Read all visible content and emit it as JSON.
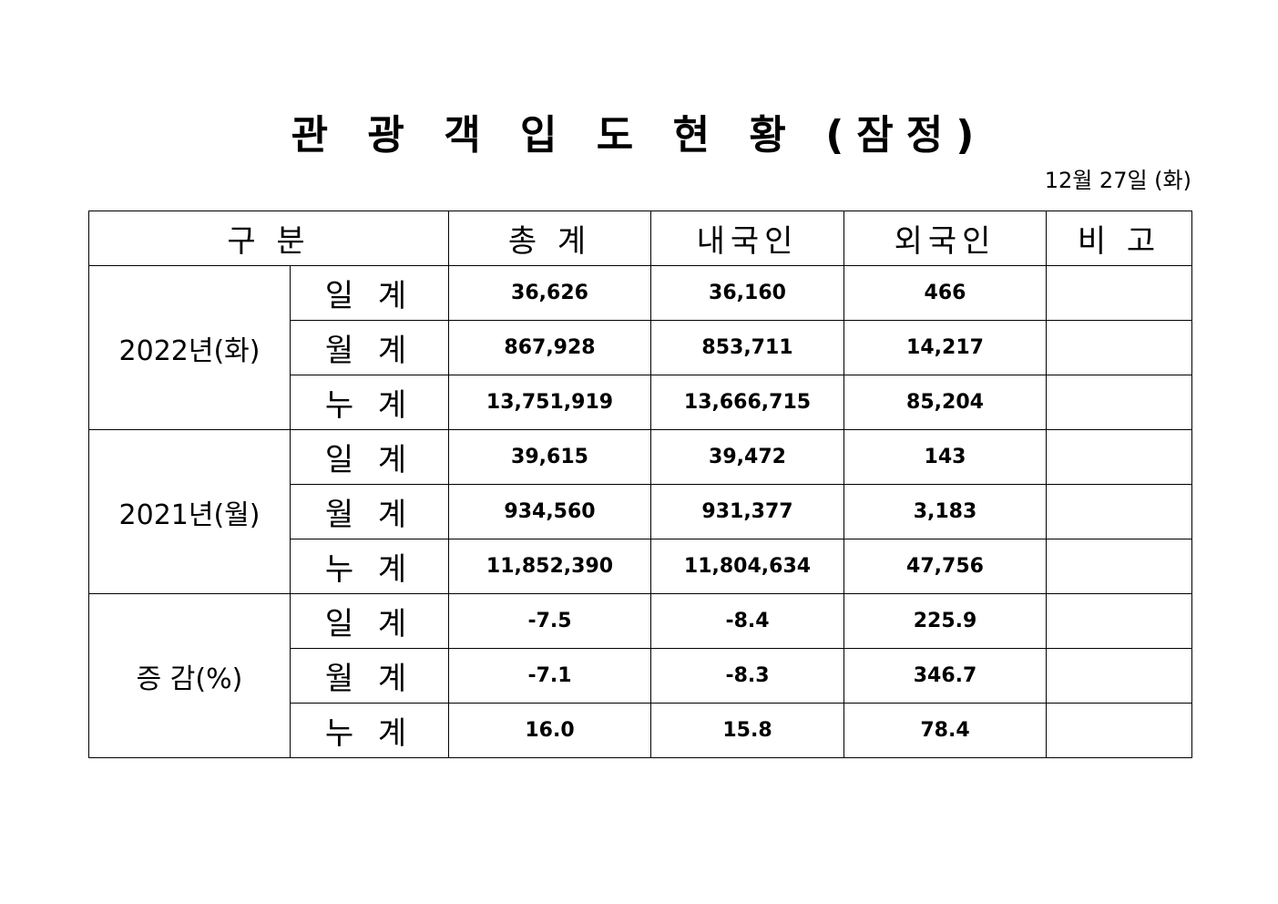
{
  "header": {
    "title": "관 광 객 입 도 현 황 (잠정)",
    "date": "12월 27일 (화)"
  },
  "table": {
    "columns": [
      "구 분",
      "총 계",
      "내국인",
      "외국인",
      "비 고"
    ],
    "groups": [
      {
        "label": "2022년(화)",
        "rows": [
          {
            "label": "일 계",
            "values": [
              "36,626",
              "36,160",
              "466"
            ]
          },
          {
            "label": "월 계",
            "values": [
              "867,928",
              "853,711",
              "14,217"
            ]
          },
          {
            "label": "누 계",
            "values": [
              "13,751,919",
              "13,666,715",
              "85,204"
            ]
          }
        ]
      },
      {
        "label": "2021년(월)",
        "rows": [
          {
            "label": "일 계",
            "values": [
              "39,615",
              "39,472",
              "143"
            ]
          },
          {
            "label": "월 계",
            "values": [
              "934,560",
              "931,377",
              "3,183"
            ]
          },
          {
            "label": "누 계",
            "values": [
              "11,852,390",
              "11,804,634",
              "47,756"
            ]
          }
        ]
      },
      {
        "label": "증 감(%)",
        "rows": [
          {
            "label": "일 계",
            "values": [
              "-7.5",
              "-8.4",
              "225.9"
            ]
          },
          {
            "label": "월 계",
            "values": [
              "-7.1",
              "-8.3",
              "346.7"
            ]
          },
          {
            "label": "누 계",
            "values": [
              "16.0",
              "15.8",
              "78.4"
            ]
          }
        ]
      }
    ]
  }
}
